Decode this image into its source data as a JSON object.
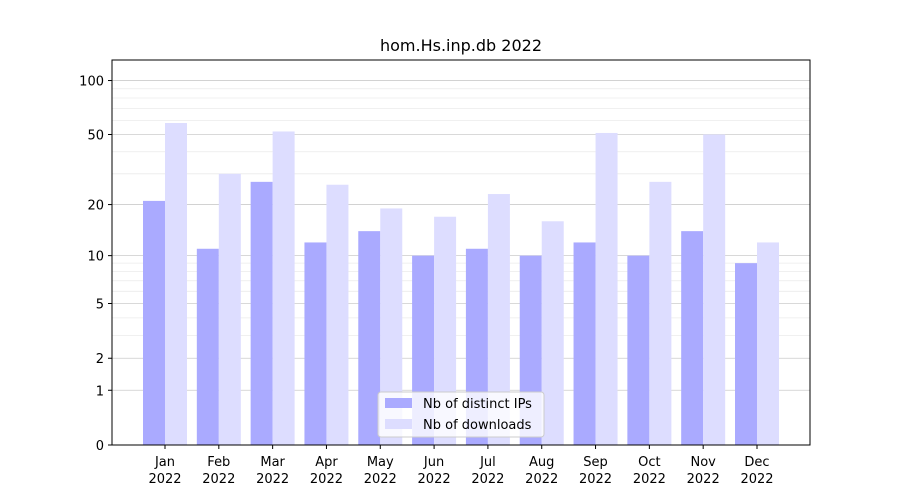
{
  "chart_data": {
    "type": "bar",
    "title": "hom.Hs.inp.db 2022",
    "xlabel": "",
    "ylabel": "",
    "categories": [
      {
        "month": "Jan",
        "year": "2022"
      },
      {
        "month": "Feb",
        "year": "2022"
      },
      {
        "month": "Mar",
        "year": "2022"
      },
      {
        "month": "Apr",
        "year": "2022"
      },
      {
        "month": "May",
        "year": "2022"
      },
      {
        "month": "Jun",
        "year": "2022"
      },
      {
        "month": "Jul",
        "year": "2022"
      },
      {
        "month": "Aug",
        "year": "2022"
      },
      {
        "month": "Sep",
        "year": "2022"
      },
      {
        "month": "Oct",
        "year": "2022"
      },
      {
        "month": "Nov",
        "year": "2022"
      },
      {
        "month": "Dec",
        "year": "2022"
      }
    ],
    "series": [
      {
        "name": "Nb of distinct IPs",
        "color": "#aaaaff",
        "values": [
          21,
          11,
          27,
          12,
          14,
          10,
          11,
          10,
          12,
          10,
          14,
          9
        ]
      },
      {
        "name": "Nb of downloads",
        "color": "#ddddff",
        "values": [
          58,
          30,
          52,
          26,
          19,
          17,
          23,
          16,
          51,
          27,
          50,
          12
        ]
      }
    ],
    "yscale": "log1p",
    "yticks": [
      0,
      1,
      2,
      5,
      10,
      20,
      50,
      100
    ],
    "yminor_ticks": [
      3,
      4,
      6,
      7,
      8,
      9,
      30,
      40,
      60,
      70,
      80,
      90
    ],
    "ylim": [
      0,
      130
    ],
    "grid": true,
    "legend_position": "lower-center"
  }
}
